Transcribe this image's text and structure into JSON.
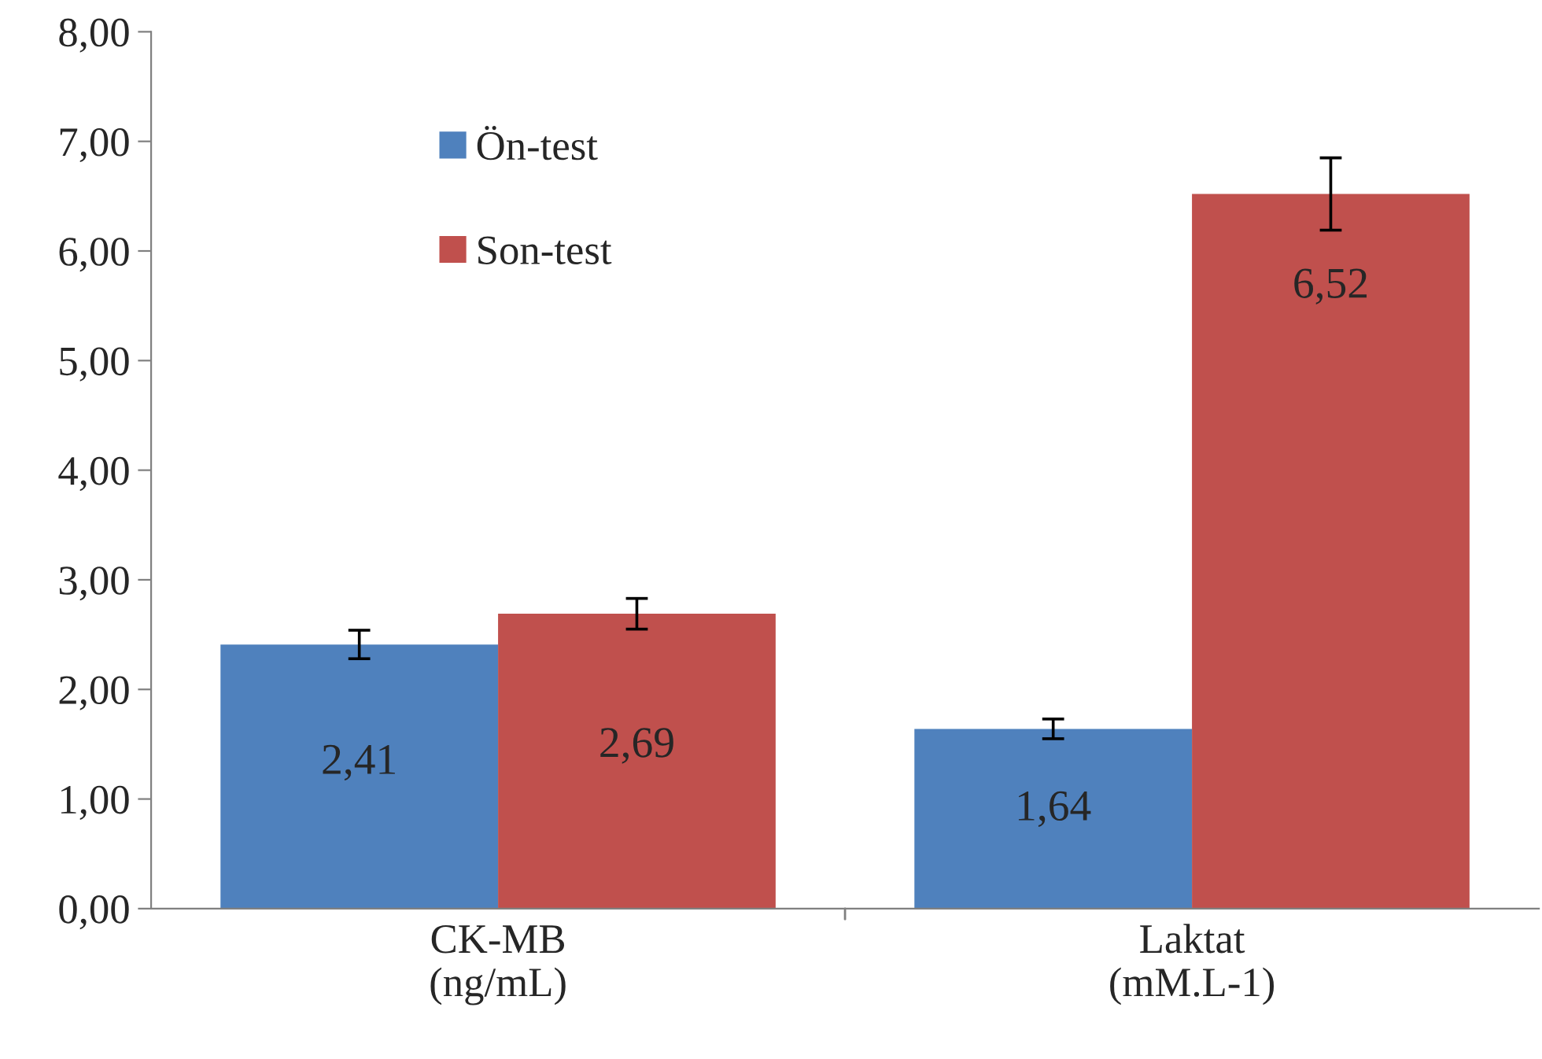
{
  "chart_data": {
    "type": "bar",
    "categories": [
      "CK-MB\n(ng/mL)",
      "Laktat\n(mM.L-1)"
    ],
    "series": [
      {
        "name": "Ön-test",
        "color": "#4f81bd",
        "values": [
          2.41,
          1.64
        ],
        "errors": [
          0.13,
          0.09
        ],
        "value_labels": [
          "2,41",
          "1,64"
        ]
      },
      {
        "name": "Son-test",
        "color": "#c0504d",
        "values": [
          2.69,
          6.52
        ],
        "errors": [
          0.14,
          0.33
        ],
        "value_labels": [
          "2,69",
          "6,52"
        ]
      }
    ],
    "ylim": [
      0,
      8
    ],
    "yticks": [
      {
        "value": 0,
        "label": "0,00"
      },
      {
        "value": 1,
        "label": "1,00"
      },
      {
        "value": 2,
        "label": "2,00"
      },
      {
        "value": 3,
        "label": "3,00"
      },
      {
        "value": 4,
        "label": "4,00"
      },
      {
        "value": 5,
        "label": "5,00"
      },
      {
        "value": 6,
        "label": "6,00"
      },
      {
        "value": 7,
        "label": "7,00"
      },
      {
        "value": 8,
        "label": "8,00"
      }
    ],
    "grid": false,
    "legend": "top left"
  }
}
